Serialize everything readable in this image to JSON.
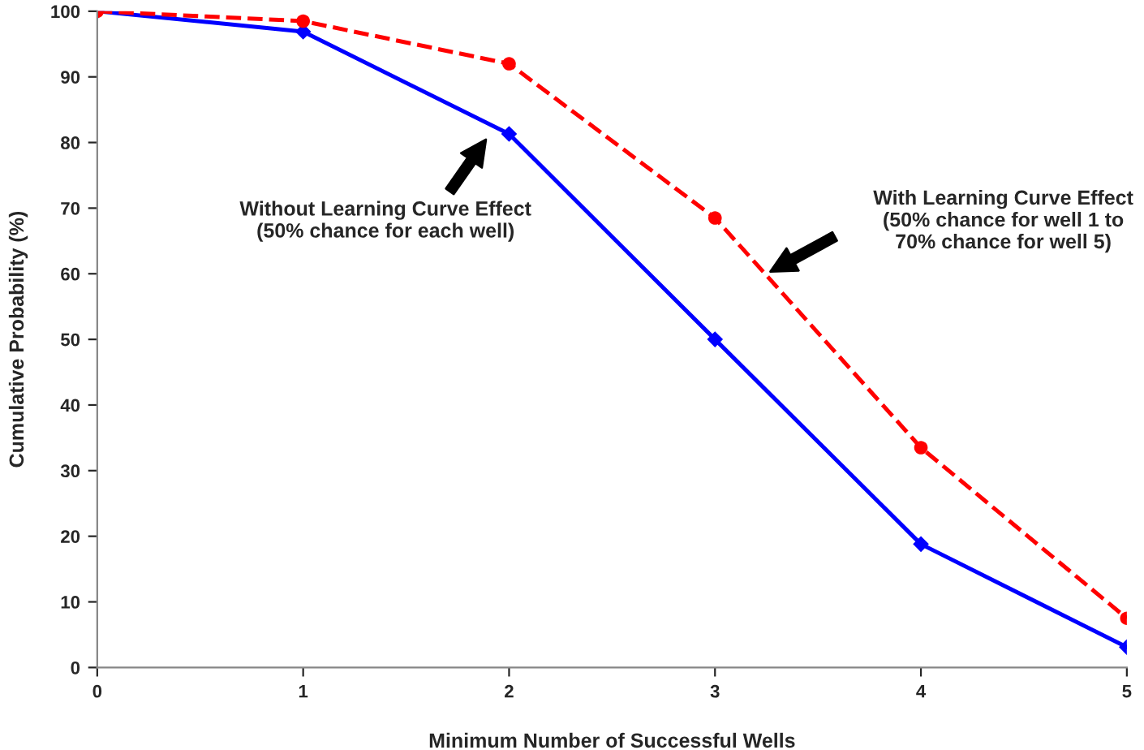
{
  "chart_data": {
    "type": "line",
    "xlabel": "Minimum Number of Successful Wells",
    "ylabel": "Cumulative Probability (%)",
    "x": [
      0,
      1,
      2,
      3,
      4,
      5
    ],
    "series": [
      {
        "color": "#0000ff",
        "values": [
          100,
          96.9,
          81.3,
          50,
          18.8,
          3.1
        ],
        "marker": "diamond",
        "line_style": "solid"
      },
      {
        "color": "#ff0000",
        "values": [
          100,
          98.5,
          92,
          68.5,
          33.5,
          7.5
        ],
        "marker": "circle",
        "line_style": "dashed"
      }
    ],
    "xlim": [
      0,
      5
    ],
    "xticks": [
      0,
      1,
      2,
      3,
      4,
      5
    ],
    "ylim": [
      0,
      100
    ],
    "yticks": [
      0,
      10,
      20,
      30,
      40,
      50,
      60,
      70,
      80,
      90,
      100
    ],
    "grid": false,
    "legend": false,
    "annotations": [
      "Without Learning Curve Effect\n(50% chance for each well)",
      "With Learning Curve Effect\n(50% chance for well 1 to\n70% chance for well 5)"
    ]
  }
}
